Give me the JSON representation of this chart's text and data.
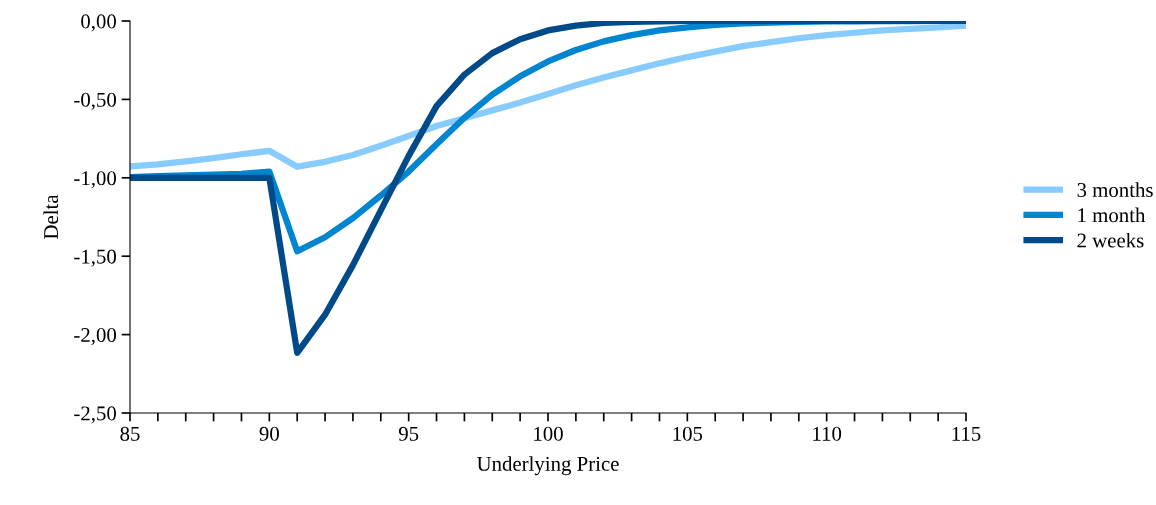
{
  "chart_data": {
    "type": "line",
    "xlabel": "Underlying Price",
    "ylabel": "Delta",
    "x": [
      85,
      86,
      87,
      88,
      89,
      90,
      91,
      92,
      93,
      94,
      95,
      96,
      97,
      98,
      99,
      100,
      101,
      102,
      103,
      104,
      105,
      106,
      107,
      108,
      109,
      110,
      111,
      112,
      113,
      114,
      115
    ],
    "series": [
      {
        "name": "3 months",
        "color": "#87cbff",
        "values": [
          -0.927,
          -0.915,
          -0.895,
          -0.875,
          -0.85,
          -0.828,
          -0.929,
          -0.898,
          -0.855,
          -0.796,
          -0.733,
          -0.67,
          -0.62,
          -0.57,
          -0.52,
          -0.465,
          -0.41,
          -0.36,
          -0.315,
          -0.27,
          -0.23,
          -0.195,
          -0.16,
          -0.135,
          -0.11,
          -0.09,
          -0.075,
          -0.06,
          -0.05,
          -0.04,
          -0.03
        ]
      },
      {
        "name": "1 month",
        "color": "#0085d0",
        "values": [
          -0.995,
          -0.99,
          -0.985,
          -0.98,
          -0.975,
          -0.96,
          -1.468,
          -1.379,
          -1.257,
          -1.113,
          -0.96,
          -0.786,
          -0.617,
          -0.469,
          -0.353,
          -0.258,
          -0.185,
          -0.13,
          -0.09,
          -0.06,
          -0.04,
          -0.025,
          -0.015,
          -0.01,
          -0.005,
          -0.003,
          -0.002,
          -0.001,
          -0.001,
          0,
          0
        ]
      },
      {
        "name": "2 weeks",
        "color": "#004a8a",
        "values": [
          -1.0,
          -1.0,
          -1.0,
          -1.0,
          -1.0,
          -1.0,
          -2.116,
          -1.873,
          -1.557,
          -1.208,
          -0.86,
          -0.543,
          -0.342,
          -0.205,
          -0.116,
          -0.06,
          -0.03,
          -0.012,
          -0.005,
          -0.002,
          0,
          0,
          0,
          0,
          0,
          0,
          0,
          0,
          0,
          0,
          0
        ]
      }
    ],
    "xlim": [
      85,
      115
    ],
    "xticks": [
      85,
      {
        "value": 86,
        "label": null
      },
      {
        "value": 87,
        "label": null
      },
      {
        "value": 88,
        "label": null
      },
      {
        "value": 89,
        "label": null
      },
      90,
      {
        "value": 91,
        "label": null
      },
      {
        "value": 92,
        "label": null
      },
      {
        "value": 93,
        "label": null
      },
      {
        "value": 94,
        "label": null
      },
      95,
      {
        "value": 96,
        "label": null
      },
      {
        "value": 97,
        "label": null
      },
      {
        "value": 98,
        "label": null
      },
      {
        "value": 99,
        "label": null
      },
      100,
      {
        "value": 101,
        "label": null
      },
      {
        "value": 102,
        "label": null
      },
      {
        "value": 103,
        "label": null
      },
      {
        "value": 104,
        "label": null
      },
      105,
      {
        "value": 106,
        "label": null
      },
      {
        "value": 107,
        "label": null
      },
      {
        "value": 108,
        "label": null
      },
      {
        "value": 109,
        "label": null
      },
      110,
      {
        "value": 111,
        "label": null
      },
      {
        "value": 112,
        "label": null
      },
      {
        "value": 113,
        "label": null
      },
      {
        "value": 114,
        "label": null
      },
      115
    ],
    "ylim": [
      -2.5,
      0
    ],
    "yticks": [
      {
        "value": -2.5,
        "label": "-2,50"
      },
      {
        "value": -2.0,
        "label": "-2,00"
      },
      {
        "value": -1.5,
        "label": "-1,50"
      },
      {
        "value": -1.0,
        "label": "-1,00"
      },
      {
        "value": -0.5,
        "label": "-0,50"
      },
      {
        "value": 0,
        "label": "0,00"
      }
    ],
    "grid": false,
    "legend": "right",
    "marker": "none",
    "line_style": "solid"
  }
}
